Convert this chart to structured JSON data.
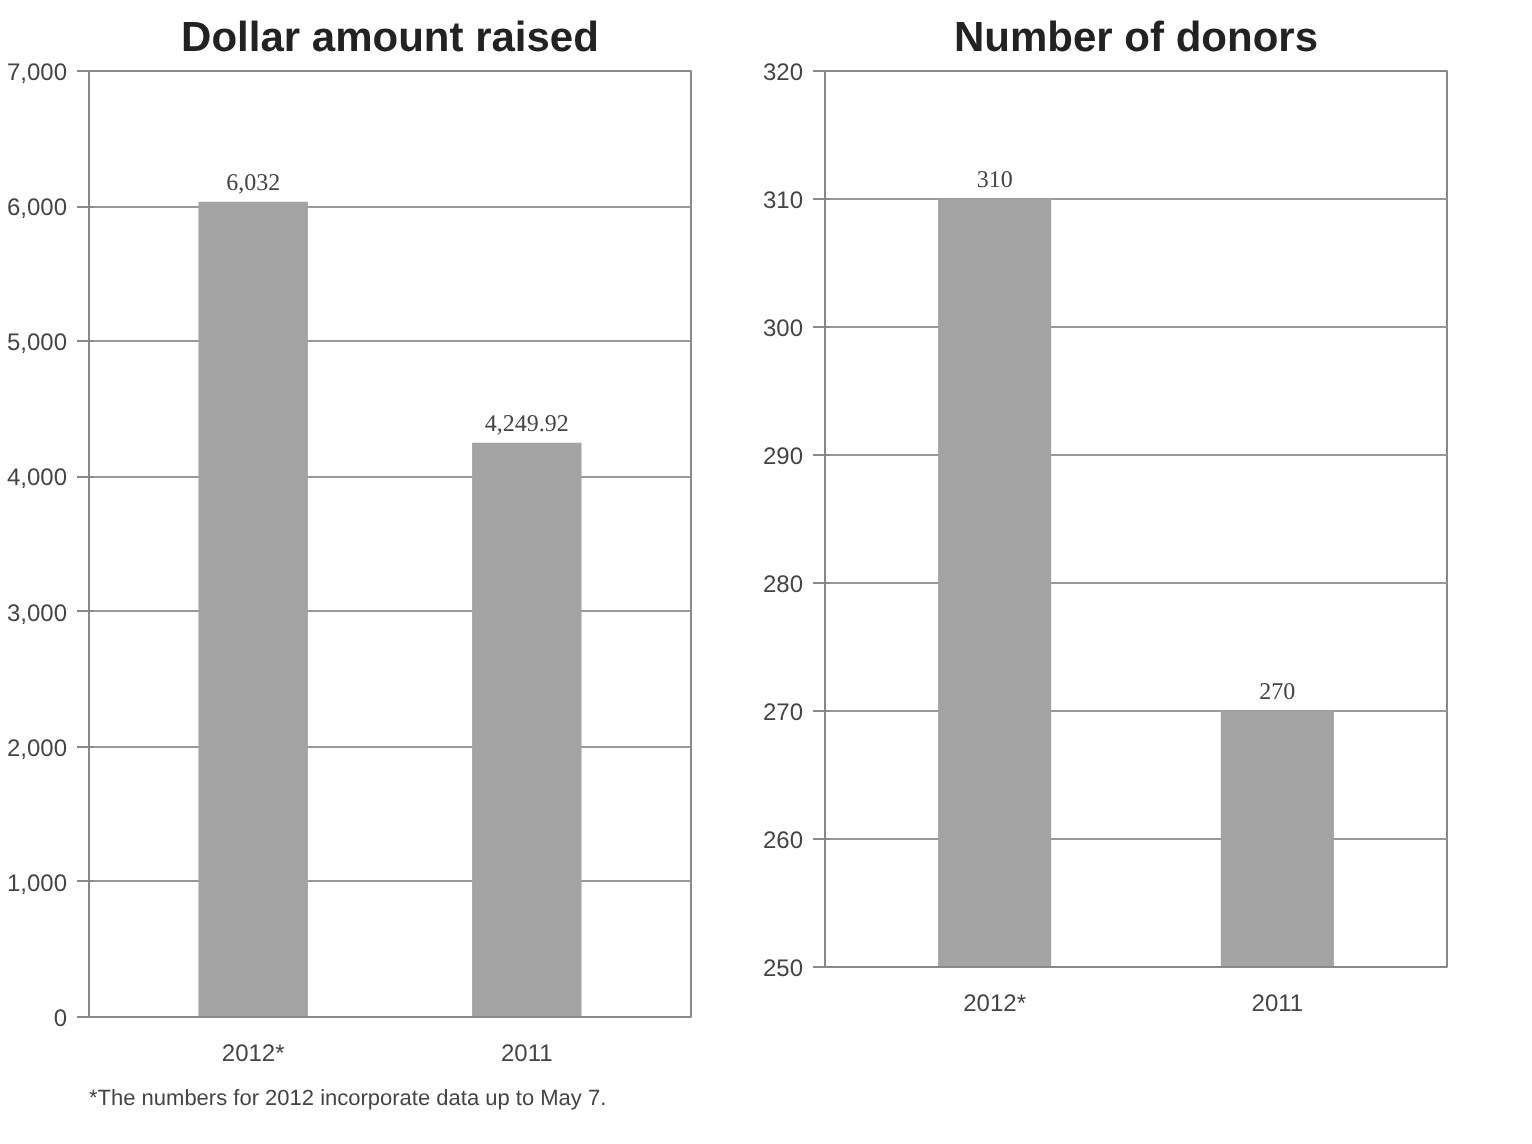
{
  "chart_data": [
    {
      "type": "bar",
      "title": "Dollar amount raised",
      "categories": [
        "2012*",
        "2011"
      ],
      "values": [
        6032,
        4249.92
      ],
      "color": "#a3a3a3",
      "value_labels": [
        "6,032",
        "4,249.92"
      ],
      "ylim": [
        0,
        7000
      ],
      "yticks": [
        0,
        {
          "value": 1000,
          "label": "1,000"
        },
        {
          "value": 2000,
          "label": "2,000"
        },
        {
          "value": 3000,
          "label": "3,000"
        },
        {
          "value": 4000,
          "label": "4,000"
        },
        {
          "value": 5000,
          "label": "5,000"
        },
        {
          "value": 6000,
          "label": "6,000"
        },
        {
          "value": 7000,
          "label": "7,000"
        }
      ],
      "grid": "y",
      "annotations": [
        "*The numbers for 2012 incorporate data up to May 7."
      ]
    },
    {
      "type": "bar",
      "title": "Number of donors",
      "categories": [
        "2012*",
        "2011"
      ],
      "values": [
        310,
        270
      ],
      "color": "#a3a3a3",
      "value_labels": [
        "310",
        "270"
      ],
      "ylim": [
        250,
        320
      ],
      "yticks": [
        250,
        260,
        270,
        280,
        290,
        300,
        310,
        320
      ],
      "grid": "y"
    }
  ]
}
